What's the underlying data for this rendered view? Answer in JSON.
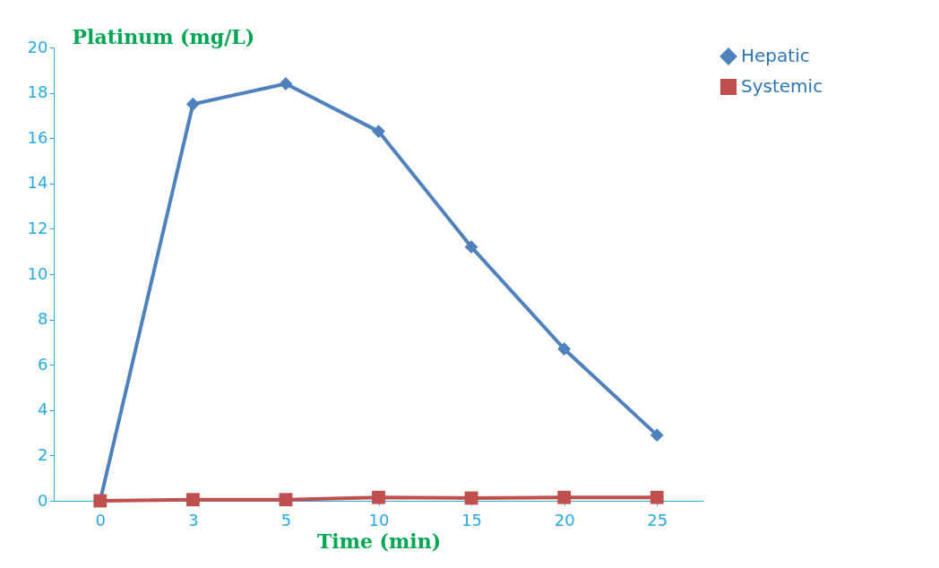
{
  "chart_data": {
    "type": "line",
    "xlabel": "Time (min)",
    "ylabel": "Platinum (mg/L)",
    "categories": [
      "0",
      "3",
      "5",
      "10",
      "15",
      "20",
      "25"
    ],
    "series": [
      {
        "name": "Hepatic",
        "color": "#4f81bd",
        "marker": "diamond",
        "values": [
          0,
          17.5,
          18.4,
          16.3,
          11.2,
          6.7,
          2.9
        ]
      },
      {
        "name": "Systemic",
        "color": "#c0504d",
        "marker": "square",
        "values": [
          0,
          0.05,
          0.05,
          0.15,
          0.12,
          0.15,
          0.15
        ]
      }
    ],
    "ylim": [
      0,
      20
    ],
    "yticks": [
      0,
      2,
      4,
      6,
      8,
      10,
      12,
      14,
      16,
      18,
      20
    ],
    "grid": false,
    "legend": "right",
    "line_style": "solid"
  }
}
